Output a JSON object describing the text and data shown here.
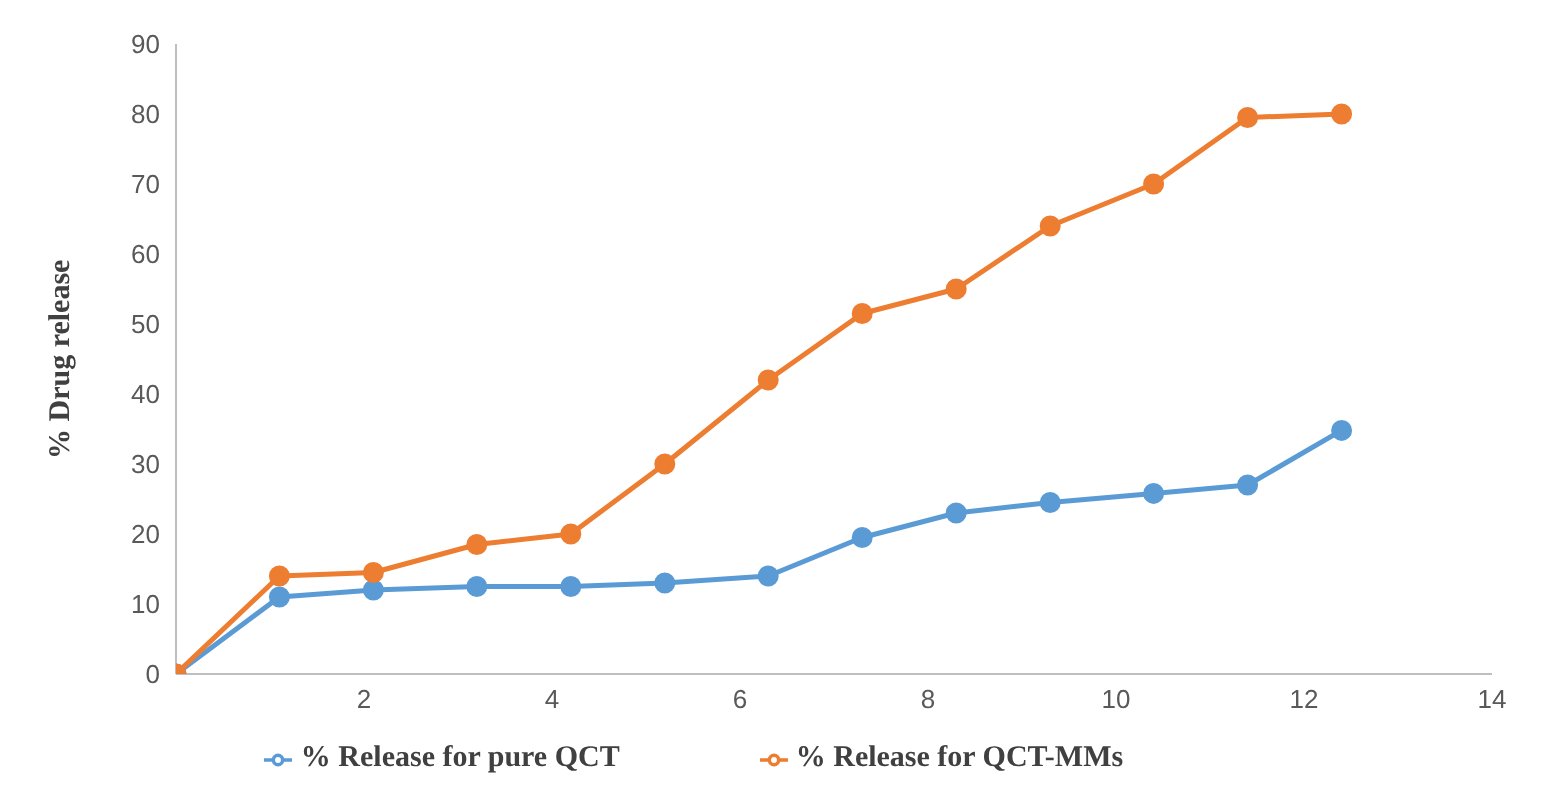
{
  "chart_data": {
    "type": "line",
    "ylabel": "% Drug release",
    "x": [
      0,
      1.1,
      2.1,
      3.2,
      4.2,
      5.2,
      6.3,
      7.3,
      8.3,
      9.3,
      10.4,
      11.4,
      12.4
    ],
    "series": [
      {
        "name": "% Release for pure QCT",
        "color": "#5b9bd5",
        "values": [
          0,
          11,
          12,
          12.5,
          12.5,
          13,
          14,
          19.5,
          23,
          24.5,
          25.8,
          27,
          34.8
        ]
      },
      {
        "name": "% Release for  QCT-MMs",
        "color": "#ed7d31",
        "values": [
          0,
          14,
          14.5,
          18.5,
          20,
          30,
          42,
          51.5,
          55,
          64,
          70,
          79.5,
          80
        ]
      }
    ],
    "xlim": [
      0,
      14
    ],
    "xticks": [
      2,
      4,
      6,
      8,
      10,
      12,
      14
    ],
    "ylim": [
      0,
      90
    ],
    "yticks": [
      0,
      10,
      20,
      30,
      40,
      50,
      60,
      70,
      80,
      90
    ],
    "grid": false,
    "legend": "bottom",
    "marker": "circle",
    "line_style": "solid"
  }
}
